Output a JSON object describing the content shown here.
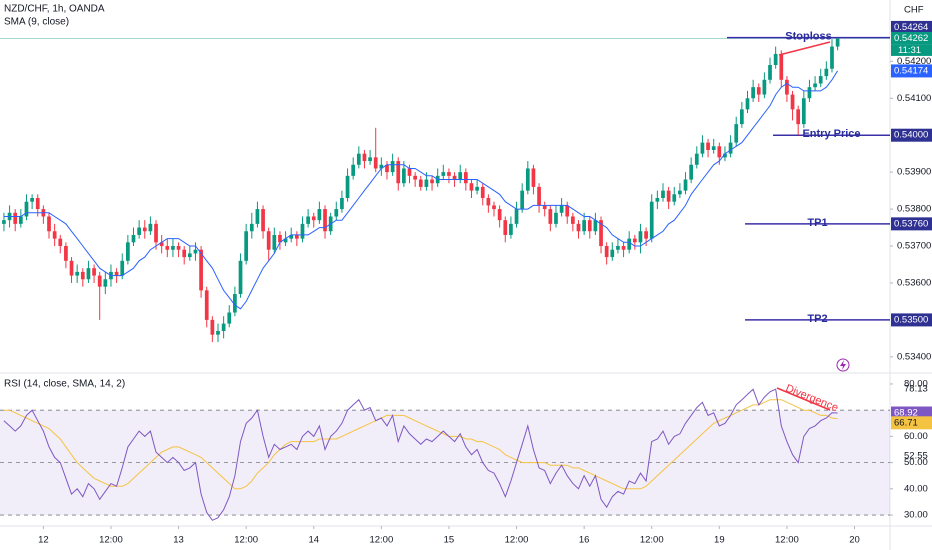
{
  "chart_data": {
    "type": "candlestick",
    "title": "NZD/CHF, 1h, OANDA",
    "indicator": "SMA (9, close)",
    "currency": "CHF",
    "countdown": "11:31",
    "up_color": "#089981",
    "down_color": "#f23645",
    "sma_color": "#2962ff",
    "xlim": [
      -0.7,
      157.3
    ],
    "xticks": [
      {
        "value": 7,
        "label": "12"
      },
      {
        "value": 19,
        "label": "12:00"
      },
      {
        "value": 31,
        "label": "13"
      },
      {
        "value": 43,
        "label": "12:00"
      },
      {
        "value": 55,
        "label": "14"
      },
      {
        "value": 67,
        "label": "12:00"
      },
      {
        "value": 79,
        "label": "15"
      },
      {
        "value": 91,
        "label": "12:00"
      },
      {
        "value": 103,
        "label": "16"
      },
      {
        "value": 115,
        "label": "12:00"
      },
      {
        "value": 127,
        "label": "19"
      },
      {
        "value": 139,
        "label": "12:00"
      },
      {
        "value": 151,
        "label": "20"
      }
    ],
    "ylim": [
      0.53359,
      0.54366
    ],
    "yticks": [
      {
        "value": 0.542,
        "label": "0.54200"
      },
      {
        "value": 0.541,
        "label": "0.54100"
      },
      {
        "value": 0.539,
        "label": "0.53900"
      },
      {
        "value": 0.538,
        "label": "0.53800"
      },
      {
        "value": 0.537,
        "label": "0.53700"
      },
      {
        "value": 0.536,
        "label": "0.53600"
      },
      {
        "value": 0.534,
        "label": "0.53400"
      }
    ],
    "open": [
      0.5376,
      0.5377,
      0.5379,
      0.5376,
      0.5378,
      0.5382,
      0.5383,
      0.538,
      0.5378,
      0.5374,
      0.5372,
      0.537,
      0.5366,
      0.5362,
      0.5363,
      0.5361,
      0.5364,
      0.5362,
      0.5359,
      0.5361,
      0.5363,
      0.5362,
      0.5366,
      0.5371,
      0.5373,
      0.5375,
      0.5374,
      0.5376,
      0.5371,
      0.537,
      0.5369,
      0.537,
      0.5369,
      0.5367,
      0.5368,
      0.5369,
      0.5358,
      0.535,
      0.5346,
      0.5347,
      0.5349,
      0.5352,
      0.5357,
      0.5366,
      0.5374,
      0.5376,
      0.538,
      0.5374,
      0.5369,
      0.5373,
      0.5371,
      0.5372,
      0.5373,
      0.5372,
      0.5376,
      0.5378,
      0.5377,
      0.538,
      0.5374,
      0.5378,
      0.538,
      0.5383,
      0.5389,
      0.5392,
      0.5395,
      0.5393,
      0.5394,
      0.5391,
      0.5392,
      0.539,
      0.5393,
      0.5387,
      0.5391,
      0.5389,
      0.5388,
      0.5386,
      0.5388,
      0.5387,
      0.5389,
      0.539,
      0.5389,
      0.5388,
      0.539,
      0.5387,
      0.5385,
      0.5386,
      0.5383,
      0.5381,
      0.538,
      0.5377,
      0.5373,
      0.5376,
      0.538,
      0.5385,
      0.5391,
      0.5386,
      0.5381,
      0.538,
      0.5376,
      0.5379,
      0.5381,
      0.5378,
      0.5376,
      0.5374,
      0.5377,
      0.5374,
      0.5377,
      0.537,
      0.5367,
      0.5369,
      0.537,
      0.5369,
      0.5372,
      0.5371,
      0.5374,
      0.5372,
      0.5382,
      0.5383,
      0.5385,
      0.5382,
      0.5384,
      0.5385,
      0.5388,
      0.5392,
      0.5395,
      0.5398,
      0.5396,
      0.5397,
      0.5394,
      0.5395,
      0.5398,
      0.5403,
      0.5407,
      0.541,
      0.5413,
      0.5411,
      0.5415,
      0.5419,
      0.5422,
      0.5415,
      0.5411,
      0.5407,
      0.5403,
      0.541,
      0.5413,
      0.5414,
      0.5416,
      0.5418,
      0.5424
    ],
    "high": [
      0.5379,
      0.5381,
      0.538,
      0.538,
      0.5384,
      0.5384,
      0.5384,
      0.5381,
      0.5379,
      0.5376,
      0.5373,
      0.5371,
      0.5367,
      0.5365,
      0.5364,
      0.5366,
      0.5365,
      0.5363,
      0.5363,
      0.5365,
      0.5364,
      0.5368,
      0.5373,
      0.5375,
      0.5377,
      0.5377,
      0.5378,
      0.5377,
      0.5373,
      0.5372,
      0.5372,
      0.5371,
      0.537,
      0.537,
      0.5371,
      0.537,
      0.5359,
      0.5351,
      0.5349,
      0.5351,
      0.5354,
      0.5359,
      0.5368,
      0.5376,
      0.5379,
      0.5382,
      0.5381,
      0.5375,
      0.5375,
      0.5374,
      0.5374,
      0.5375,
      0.5374,
      0.5378,
      0.538,
      0.5379,
      0.5382,
      0.5381,
      0.5379,
      0.5382,
      0.5385,
      0.5391,
      0.5394,
      0.5397,
      0.5396,
      0.5396,
      0.5402,
      0.5394,
      0.5393,
      0.5395,
      0.5394,
      0.5393,
      0.5392,
      0.539,
      0.5389,
      0.539,
      0.5389,
      0.5391,
      0.5392,
      0.5391,
      0.539,
      0.5392,
      0.5391,
      0.5388,
      0.5388,
      0.5387,
      0.5384,
      0.5382,
      0.5381,
      0.5378,
      0.5378,
      0.5382,
      0.5387,
      0.5393,
      0.5392,
      0.5387,
      0.5382,
      0.5381,
      0.5381,
      0.5383,
      0.5382,
      0.5379,
      0.5377,
      0.5379,
      0.5378,
      0.5379,
      0.5378,
      0.5371,
      0.5371,
      0.5372,
      0.5371,
      0.5374,
      0.5373,
      0.5376,
      0.5375,
      0.5384,
      0.5385,
      0.5387,
      0.5386,
      0.5386,
      0.5387,
      0.539,
      0.5394,
      0.5397,
      0.54,
      0.5399,
      0.5399,
      0.5398,
      0.5397,
      0.54,
      0.5405,
      0.5409,
      0.5412,
      0.5415,
      0.5414,
      0.5417,
      0.5421,
      0.5424,
      0.5423,
      0.5416,
      0.5412,
      0.5408,
      0.5412,
      0.5415,
      0.5416,
      0.5418,
      0.542,
      0.5426,
      0.54264
    ],
    "low": [
      0.5374,
      0.5375,
      0.5374,
      0.5375,
      0.5377,
      0.538,
      0.5378,
      0.5376,
      0.5372,
      0.537,
      0.5368,
      0.5364,
      0.536,
      0.536,
      0.5359,
      0.536,
      0.536,
      0.535,
      0.5357,
      0.5359,
      0.536,
      0.5361,
      0.5365,
      0.537,
      0.5372,
      0.5372,
      0.5373,
      0.5369,
      0.5368,
      0.5367,
      0.5367,
      0.5367,
      0.5365,
      0.5366,
      0.5366,
      0.5356,
      0.5348,
      0.5344,
      0.5344,
      0.5345,
      0.5348,
      0.5351,
      0.5356,
      0.5365,
      0.5372,
      0.5375,
      0.5372,
      0.5366,
      0.5368,
      0.5369,
      0.537,
      0.5371,
      0.537,
      0.5371,
      0.5375,
      0.5375,
      0.5376,
      0.5372,
      0.5373,
      0.5377,
      0.5379,
      0.5382,
      0.5388,
      0.5391,
      0.5391,
      0.5392,
      0.539,
      0.5389,
      0.5388,
      0.5389,
      0.5385,
      0.5386,
      0.5387,
      0.5386,
      0.5385,
      0.5385,
      0.5385,
      0.5386,
      0.5388,
      0.5387,
      0.5386,
      0.5387,
      0.5385,
      0.5383,
      0.5384,
      0.5381,
      0.5379,
      0.5378,
      0.5375,
      0.5371,
      0.5372,
      0.5375,
      0.5379,
      0.5384,
      0.5384,
      0.5379,
      0.5378,
      0.5374,
      0.5375,
      0.5378,
      0.5376,
      0.5374,
      0.5372,
      0.5373,
      0.5372,
      0.5373,
      0.5368,
      0.5365,
      0.5366,
      0.5368,
      0.5367,
      0.5368,
      0.5369,
      0.5368,
      0.537,
      0.5371,
      0.538,
      0.5382,
      0.538,
      0.5381,
      0.5383,
      0.5384,
      0.5387,
      0.5391,
      0.5394,
      0.5394,
      0.5395,
      0.5392,
      0.5393,
      0.5394,
      0.5397,
      0.5402,
      0.5406,
      0.5409,
      0.5409,
      0.541,
      0.5414,
      0.5418,
      0.5413,
      0.5409,
      0.5404,
      0.54,
      0.5402,
      0.5409,
      0.5412,
      0.5413,
      0.5415,
      0.5417,
      0.5423
    ],
    "close": [
      0.5377,
      0.5379,
      0.5376,
      0.5378,
      0.5382,
      0.5383,
      0.538,
      0.5378,
      0.5374,
      0.5372,
      0.537,
      0.5366,
      0.5362,
      0.5363,
      0.5361,
      0.5364,
      0.5362,
      0.5359,
      0.5361,
      0.5363,
      0.5362,
      0.5366,
      0.5371,
      0.5373,
      0.5375,
      0.5374,
      0.5376,
      0.5371,
      0.537,
      0.5369,
      0.537,
      0.5369,
      0.5367,
      0.5368,
      0.5369,
      0.5358,
      0.535,
      0.5346,
      0.5347,
      0.5349,
      0.5352,
      0.5357,
      0.5366,
      0.5374,
      0.5376,
      0.538,
      0.5374,
      0.5369,
      0.5373,
      0.5371,
      0.5372,
      0.5373,
      0.5372,
      0.5376,
      0.5378,
      0.5377,
      0.538,
      0.5374,
      0.5378,
      0.538,
      0.5383,
      0.5389,
      0.5392,
      0.5395,
      0.5393,
      0.5394,
      0.5391,
      0.5392,
      0.539,
      0.5393,
      0.5387,
      0.5391,
      0.5389,
      0.5388,
      0.5386,
      0.5388,
      0.5387,
      0.5389,
      0.539,
      0.5389,
      0.5388,
      0.539,
      0.5387,
      0.5385,
      0.5386,
      0.5383,
      0.5381,
      0.538,
      0.5377,
      0.5373,
      0.5376,
      0.538,
      0.5385,
      0.5391,
      0.5386,
      0.5381,
      0.538,
      0.5376,
      0.5379,
      0.5381,
      0.5378,
      0.5376,
      0.5374,
      0.5377,
      0.5374,
      0.5377,
      0.537,
      0.5367,
      0.5369,
      0.537,
      0.5369,
      0.5372,
      0.5371,
      0.5374,
      0.5372,
      0.5382,
      0.5383,
      0.5385,
      0.5382,
      0.5384,
      0.5385,
      0.5388,
      0.5392,
      0.5395,
      0.5398,
      0.5396,
      0.5397,
      0.5394,
      0.5395,
      0.5398,
      0.5403,
      0.5407,
      0.541,
      0.5413,
      0.5411,
      0.5415,
      0.5419,
      0.5422,
      0.5415,
      0.5411,
      0.5407,
      0.5403,
      0.541,
      0.5413,
      0.5414,
      0.5416,
      0.5418,
      0.5424,
      0.54262
    ],
    "sma": [
      0.5378,
      0.5378,
      0.5378,
      0.5378,
      0.5379,
      0.5379,
      0.5379,
      0.5379,
      0.5379,
      0.5378,
      0.5377,
      0.5376,
      0.5374,
      0.5372,
      0.537,
      0.5368,
      0.5366,
      0.5364,
      0.5363,
      0.5362,
      0.5362,
      0.5362,
      0.5363,
      0.5364,
      0.5366,
      0.5367,
      0.5369,
      0.537,
      0.5371,
      0.5372,
      0.5372,
      0.5372,
      0.5371,
      0.537,
      0.537,
      0.5368,
      0.5366,
      0.5364,
      0.5361,
      0.5358,
      0.5356,
      0.5354,
      0.5353,
      0.5355,
      0.5358,
      0.5361,
      0.5364,
      0.5366,
      0.5368,
      0.5371,
      0.5372,
      0.5373,
      0.5373,
      0.5373,
      0.5373,
      0.5374,
      0.5375,
      0.5375,
      0.5376,
      0.5377,
      0.5377,
      0.5379,
      0.5381,
      0.5383,
      0.5385,
      0.5387,
      0.5389,
      0.5391,
      0.5392,
      0.5392,
      0.5392,
      0.5392,
      0.5391,
      0.5391,
      0.539,
      0.5389,
      0.5389,
      0.5388,
      0.5388,
      0.5388,
      0.5388,
      0.5388,
      0.5388,
      0.5388,
      0.5388,
      0.5387,
      0.5386,
      0.5385,
      0.5384,
      0.5382,
      0.5381,
      0.538,
      0.538,
      0.538,
      0.5381,
      0.5381,
      0.5381,
      0.5381,
      0.5381,
      0.5381,
      0.5381,
      0.538,
      0.5379,
      0.5378,
      0.5378,
      0.5377,
      0.5376,
      0.5375,
      0.5373,
      0.5372,
      0.5371,
      0.5371,
      0.537,
      0.537,
      0.5371,
      0.5372,
      0.5373,
      0.5374,
      0.5376,
      0.5377,
      0.5379,
      0.5381,
      0.5384,
      0.5386,
      0.5388,
      0.539,
      0.5392,
      0.5393,
      0.5395,
      0.5396,
      0.5397,
      0.5398,
      0.54,
      0.5402,
      0.5404,
      0.5406,
      0.5408,
      0.5411,
      0.5413,
      0.5414,
      0.5413,
      0.5413,
      0.5412,
      0.5412,
      0.5412,
      0.5412,
      0.5413,
      0.5415,
      0.54174
    ],
    "levels": [
      {
        "name": "Stoploss",
        "value": 0.54264,
        "label": "0.54264",
        "color": "#3b2fa8"
      },
      {
        "name": "Entry Price",
        "value": 0.54,
        "label": "0.54000",
        "color": "#3b2fa8"
      },
      {
        "name": "TP1",
        "value": 0.5376,
        "label": "0.53760",
        "color": "#3b2fa8"
      },
      {
        "name": "TP2",
        "value": 0.535,
        "label": "0.53500",
        "color": "#3b2fa8"
      }
    ],
    "divergence": "Divergence",
    "rsi": {
      "title": "RSI (14, close, SMA, 14, 2)",
      "color": "#7e57c2",
      "sma_color": "#f5c342",
      "ylim": [
        26.2,
        83.8
      ],
      "yticks": [
        {
          "value": 80,
          "label": "80.00"
        },
        {
          "value": 60,
          "label": "60.00"
        },
        {
          "value": 50,
          "label": "50.00"
        },
        {
          "value": 40,
          "label": "40.00"
        },
        {
          "value": 30,
          "label": "30.00"
        }
      ],
      "bands": [
        70,
        50,
        30
      ],
      "marked": [
        78.13,
        52.55
      ],
      "values": [
        66,
        64,
        62,
        64,
        68,
        70,
        66,
        62,
        56,
        52,
        50,
        44,
        38,
        40,
        37,
        42,
        40,
        36,
        39,
        42,
        41,
        48,
        56,
        59,
        62,
        60,
        62,
        54,
        52,
        50,
        52,
        50,
        47,
        48,
        50,
        38,
        31,
        28,
        29,
        32,
        37,
        45,
        58,
        65,
        67,
        70,
        60,
        52,
        57,
        55,
        56,
        57,
        55,
        60,
        62,
        60,
        64,
        55,
        60,
        62,
        65,
        70,
        72,
        74,
        70,
        71,
        66,
        67,
        64,
        68,
        58,
        64,
        61,
        59,
        57,
        59,
        58,
        60,
        62,
        60,
        58,
        61,
        56,
        53,
        55,
        50,
        47,
        46,
        42,
        37,
        43,
        50,
        57,
        64,
        55,
        48,
        47,
        42,
        46,
        49,
        45,
        42,
        40,
        45,
        41,
        45,
        36,
        33,
        37,
        39,
        38,
        43,
        42,
        46,
        43,
        58,
        59,
        62,
        57,
        60,
        61,
        65,
        68,
        71,
        73,
        68,
        69,
        64,
        65,
        68,
        72,
        74,
        76,
        78,
        72,
        75,
        77,
        78,
        64,
        58,
        53,
        50,
        60,
        63,
        64,
        66,
        67,
        69,
        68.92
      ],
      "sma": [
        70,
        70,
        69,
        68,
        67,
        66,
        65,
        64,
        63,
        61,
        59,
        56,
        53,
        50,
        48,
        46,
        44,
        43,
        42,
        41,
        41,
        41,
        42,
        44,
        46,
        48,
        50,
        52,
        54,
        55,
        56,
        56,
        55,
        54,
        53,
        52,
        50,
        48,
        46,
        44,
        42,
        40,
        40,
        41,
        43,
        46,
        48,
        50,
        53,
        55,
        57,
        58,
        58,
        58,
        58,
        58,
        59,
        59,
        59,
        59,
        60,
        61,
        62,
        63,
        64,
        65,
        66,
        67,
        68,
        68,
        68,
        68,
        67,
        66,
        65,
        64,
        63,
        62,
        61,
        60,
        60,
        60,
        59,
        59,
        58,
        58,
        57,
        56,
        55,
        53,
        52,
        51,
        50,
        50,
        50,
        50,
        50,
        49,
        49,
        49,
        49,
        48,
        48,
        47,
        46,
        45,
        44,
        43,
        42,
        41,
        40,
        40,
        40,
        40,
        41,
        43,
        45,
        47,
        49,
        51,
        53,
        55,
        57,
        59,
        61,
        63,
        65,
        66,
        67,
        68,
        69,
        70,
        71,
        72,
        72,
        73,
        74,
        74,
        74,
        73,
        72,
        71,
        70,
        70,
        69,
        68,
        68,
        67,
        66.71
      ]
    }
  }
}
